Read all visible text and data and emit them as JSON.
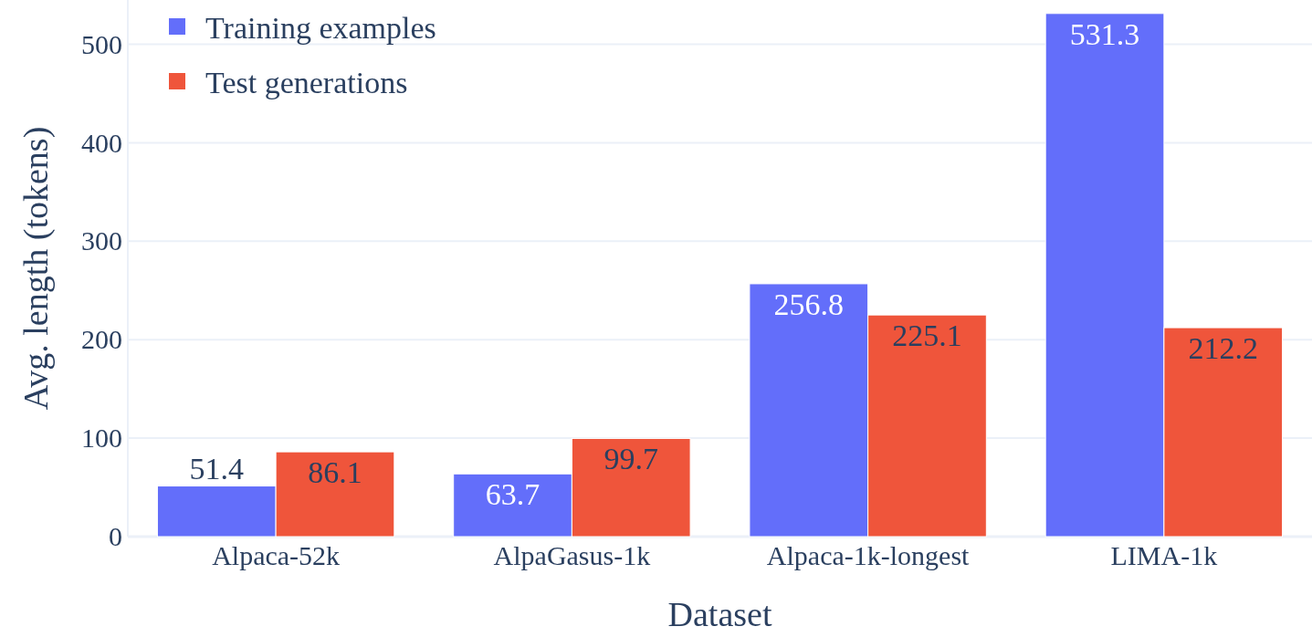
{
  "chart_data": {
    "type": "bar",
    "xlabel": "Dataset",
    "ylabel": "Avg. length (tokens)",
    "categories": [
      "Alpaca-52k",
      "AlpaGasus-1k",
      "Alpaca-1k-longest",
      "LIMA-1k"
    ],
    "series": [
      {
        "name": "Training examples",
        "color": "#636efa",
        "values": [
          51.4,
          63.7,
          256.8,
          531.3
        ]
      },
      {
        "name": "Test generations",
        "color": "#ef553b",
        "values": [
          86.1,
          99.7,
          225.1,
          212.2
        ]
      }
    ],
    "ylim": [
      0,
      545
    ],
    "yticks": [
      0,
      100,
      200,
      300,
      400,
      500
    ],
    "grid": "y",
    "legend": "top left",
    "data_labels": true
  }
}
